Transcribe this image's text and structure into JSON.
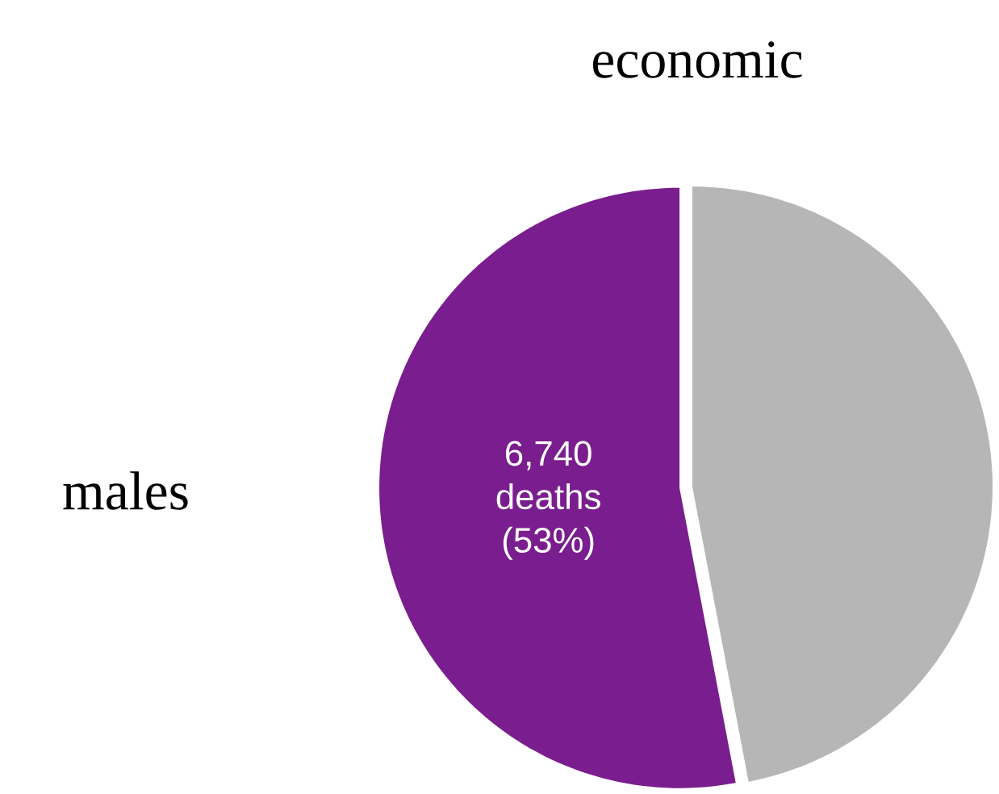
{
  "chart_data": {
    "type": "pie",
    "title": "economic",
    "ylabel": "males",
    "categories": [
      null,
      null
    ],
    "values": [
      53,
      47
    ],
    "colors": [
      "#7a1d8e",
      "#b6b6b6"
    ],
    "value_labels": [
      "6,740 deaths (53%)",
      null
    ]
  }
}
